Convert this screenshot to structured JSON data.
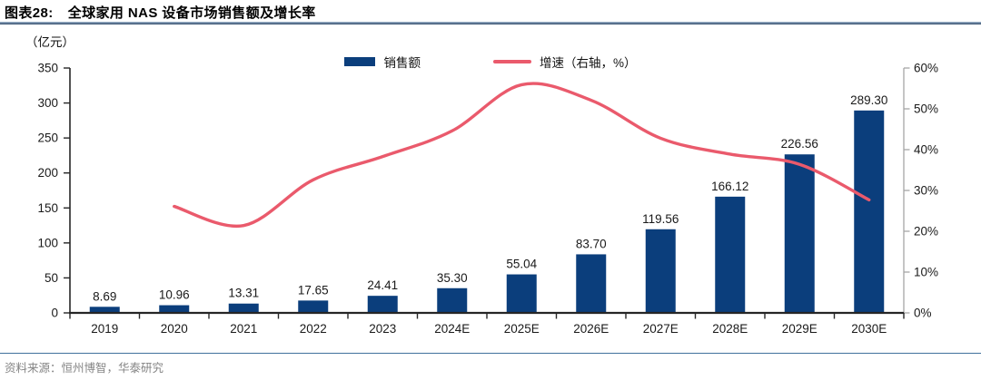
{
  "header": {
    "figure_label": "图表28:",
    "title": "全球家用 NAS 设备市场销售额及增长率"
  },
  "unit_label": "（亿元）",
  "legend": {
    "sales_label": "销售额",
    "growth_label": "增速（右轴，%）"
  },
  "footer": {
    "source": "资料来源：恒州博智，华泰研究"
  },
  "colors": {
    "bar": "#0b3e7c",
    "line": "#ea5a6c",
    "axis": "#262626",
    "right_axis": "#a6a6a6",
    "label_text": "#1a1a1a",
    "source_text": "#848484",
    "title_rule": "#2f4a68",
    "source_rule": "#41719c"
  },
  "chart_data": {
    "type": "bar",
    "subtype": "bar+line combo, line on right axis",
    "title": "全球家用 NAS 设备市场销售额及增长率",
    "xlabel": "",
    "ylabel": "（亿元）",
    "grid": false,
    "legend_position": "top-center",
    "categories": [
      "2019",
      "2020",
      "2021",
      "2022",
      "2023",
      "2024E",
      "2025E",
      "2026E",
      "2027E",
      "2028E",
      "2029E",
      "2030E"
    ],
    "series": [
      {
        "name": "销售额",
        "type": "bar",
        "axis": "left",
        "color": "#0b3e7c",
        "values": [
          8.69,
          10.96,
          13.31,
          17.65,
          24.41,
          35.3,
          55.04,
          83.7,
          119.56,
          166.12,
          226.56,
          289.3
        ],
        "value_labels": [
          "8.69",
          "10.96",
          "13.31",
          "17.65",
          "24.41",
          "35.30",
          "55.04",
          "83.70",
          "119.56",
          "166.12",
          "226.56",
          "289.30"
        ]
      },
      {
        "name": "增速（右轴，%）",
        "type": "line",
        "axis": "right",
        "color": "#ea5a6c",
        "values": [
          null,
          26.1,
          21.4,
          32.6,
          38.3,
          44.6,
          55.9,
          52.1,
          42.8,
          38.9,
          36.4,
          27.7
        ]
      }
    ],
    "left_axis": {
      "min": 0,
      "max": 350,
      "tick_step": 50,
      "ticks": [
        "0",
        "50",
        "100",
        "150",
        "200",
        "250",
        "300",
        "350"
      ]
    },
    "right_axis": {
      "min": 0,
      "max": 60,
      "tick_step": 10,
      "ticks": [
        "0%",
        "10%",
        "20%",
        "30%",
        "40%",
        "50%",
        "60%"
      ]
    }
  }
}
